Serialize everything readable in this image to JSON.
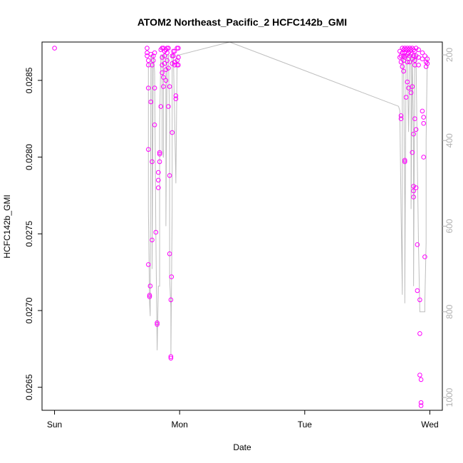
{
  "chart_data": {
    "type": "scatter",
    "title": "ATOM2 Northeast_Pacific_2 HCFC142b_GMI",
    "xlabel": "Date",
    "ylabel": "HCFC142b_GMI",
    "x_unit": "days",
    "x_ticks": [
      {
        "label": "Sun",
        "value": 0
      },
      {
        "label": "Mon",
        "value": 1
      },
      {
        "label": "Tue",
        "value": 2
      },
      {
        "label": "Wed",
        "value": 3
      }
    ],
    "xlim": [
      -0.1,
      3.1
    ],
    "ylim": [
      0.02635,
      0.02875
    ],
    "y_ticks": [
      0.0265,
      0.027,
      0.0275,
      0.028,
      0.0285
    ],
    "y_tick_labels": [
      "0.0265",
      "0.0270",
      "0.0275",
      "0.0280",
      "0.0285"
    ],
    "y2_ticks": [
      200,
      400,
      600,
      800,
      1000
    ],
    "y2_lim": [
      1030,
      170
    ],
    "grid": false,
    "point_color": "#ff00ff",
    "line_color": "#bebebe",
    "series": [
      {
        "type": "scatter",
        "points": [
          [
            0.0,
            0.02871
          ],
          [
            0.74,
            0.02871
          ],
          [
            0.74,
            0.02868
          ],
          [
            0.74,
            0.02866
          ],
          [
            0.75,
            0.02863
          ],
          [
            0.75,
            0.0286
          ],
          [
            0.75,
            0.02845
          ],
          [
            0.75,
            0.02805
          ],
          [
            0.75,
            0.0273
          ],
          [
            0.76,
            0.0271
          ],
          [
            0.76,
            0.02709
          ],
          [
            0.765,
            0.02716
          ],
          [
            0.77,
            0.02867
          ],
          [
            0.77,
            0.02836
          ],
          [
            0.78,
            0.02797
          ],
          [
            0.78,
            0.02746
          ],
          [
            0.78,
            0.0286
          ],
          [
            0.79,
            0.02866
          ],
          [
            0.79,
            0.02863
          ],
          [
            0.8,
            0.02868
          ],
          [
            0.8,
            0.02845
          ],
          [
            0.8,
            0.02821
          ],
          [
            0.81,
            0.02751
          ],
          [
            0.82,
            0.02692
          ],
          [
            0.82,
            0.02691
          ],
          [
            0.83,
            0.0279
          ],
          [
            0.83,
            0.02785
          ],
          [
            0.83,
            0.0278
          ],
          [
            0.84,
            0.02802
          ],
          [
            0.84,
            0.02803
          ],
          [
            0.84,
            0.02797
          ],
          [
            0.85,
            0.02833
          ],
          [
            0.85,
            0.0287
          ],
          [
            0.86,
            0.02871
          ],
          [
            0.86,
            0.02865
          ],
          [
            0.86,
            0.0286
          ],
          [
            0.86,
            0.02855
          ],
          [
            0.87,
            0.02852
          ],
          [
            0.87,
            0.02846
          ],
          [
            0.87,
            0.02871
          ],
          [
            0.88,
            0.02869
          ],
          [
            0.88,
            0.02866
          ],
          [
            0.88,
            0.02861
          ],
          [
            0.89,
            0.0285
          ],
          [
            0.89,
            0.0287
          ],
          [
            0.89,
            0.02857
          ],
          [
            0.9,
            0.02871
          ],
          [
            0.9,
            0.02868
          ],
          [
            0.9,
            0.02863
          ],
          [
            0.91,
            0.02871
          ],
          [
            0.91,
            0.02858
          ],
          [
            0.91,
            0.02833
          ],
          [
            0.92,
            0.02846
          ],
          [
            0.92,
            0.02788
          ],
          [
            0.92,
            0.02737
          ],
          [
            0.93,
            0.02707
          ],
          [
            0.93,
            0.0267
          ],
          [
            0.93,
            0.02669
          ],
          [
            0.935,
            0.02722
          ],
          [
            0.94,
            0.02816
          ],
          [
            0.94,
            0.02861
          ],
          [
            0.94,
            0.02866
          ],
          [
            0.95,
            0.02869
          ],
          [
            0.95,
            0.02866
          ],
          [
            0.96,
            0.02862
          ],
          [
            0.96,
            0.0286
          ],
          [
            0.96,
            0.02869
          ],
          [
            0.97,
            0.02838
          ],
          [
            0.97,
            0.0284
          ],
          [
            0.98,
            0.02871
          ],
          [
            0.98,
            0.02863
          ],
          [
            0.98,
            0.0286
          ],
          [
            0.99,
            0.02865
          ],
          [
            0.99,
            0.02871
          ],
          [
            0.99,
            0.0286
          ],
          [
            2.76,
            0.02869
          ],
          [
            2.76,
            0.02865
          ],
          [
            2.77,
            0.02862
          ],
          [
            2.77,
            0.02866
          ],
          [
            2.77,
            0.02827
          ],
          [
            2.77,
            0.02825
          ],
          [
            2.78,
            0.02871
          ],
          [
            2.78,
            0.02868
          ],
          [
            2.78,
            0.02859
          ],
          [
            2.79,
            0.0287
          ],
          [
            2.79,
            0.02866
          ],
          [
            2.79,
            0.02863
          ],
          [
            2.79,
            0.02856
          ],
          [
            2.8,
            0.02871
          ],
          [
            2.8,
            0.02868
          ],
          [
            2.8,
            0.02865
          ],
          [
            2.8,
            0.02797
          ],
          [
            2.8,
            0.02798
          ],
          [
            2.81,
            0.0287
          ],
          [
            2.81,
            0.02866
          ],
          [
            2.81,
            0.02839
          ],
          [
            2.82,
            0.02871
          ],
          [
            2.82,
            0.02867
          ],
          [
            2.82,
            0.02862
          ],
          [
            2.82,
            0.02849
          ],
          [
            2.83,
            0.0287
          ],
          [
            2.83,
            0.02868
          ],
          [
            2.83,
            0.02845
          ],
          [
            2.84,
            0.02871
          ],
          [
            2.84,
            0.02866
          ],
          [
            2.84,
            0.02862
          ],
          [
            2.85,
            0.0287
          ],
          [
            2.85,
            0.02867
          ],
          [
            2.85,
            0.02842
          ],
          [
            2.86,
            0.02871
          ],
          [
            2.86,
            0.02864
          ],
          [
            2.86,
            0.02846
          ],
          [
            2.86,
            0.02803
          ],
          [
            2.87,
            0.0287
          ],
          [
            2.87,
            0.02866
          ],
          [
            2.87,
            0.02815
          ],
          [
            2.87,
            0.02781
          ],
          [
            2.87,
            0.02778
          ],
          [
            2.87,
            0.02774
          ],
          [
            2.88,
            0.02869
          ],
          [
            2.88,
            0.02863
          ],
          [
            2.88,
            0.0286
          ],
          [
            2.88,
            0.02825
          ],
          [
            2.89,
            0.02871
          ],
          [
            2.89,
            0.02866
          ],
          [
            2.89,
            0.02818
          ],
          [
            2.89,
            0.0278
          ],
          [
            2.9,
            0.02743
          ],
          [
            2.9,
            0.02713
          ],
          [
            2.91,
            0.0287
          ],
          [
            2.91,
            0.02865
          ],
          [
            2.91,
            0.0286
          ],
          [
            2.92,
            0.02707
          ],
          [
            2.92,
            0.02685
          ],
          [
            2.92,
            0.02658
          ],
          [
            2.93,
            0.02655
          ],
          [
            2.93,
            0.0264
          ],
          [
            2.93,
            0.02638
          ],
          [
            2.94,
            0.02868
          ],
          [
            2.94,
            0.02864
          ],
          [
            2.94,
            0.0283
          ],
          [
            2.95,
            0.02826
          ],
          [
            2.95,
            0.02822
          ],
          [
            2.95,
            0.028
          ],
          [
            2.96,
            0.02735
          ],
          [
            2.96,
            0.02866
          ],
          [
            2.97,
            0.02859
          ],
          [
            2.97,
            0.02862
          ],
          [
            2.98,
            0.02864
          ],
          [
            2.98,
            0.02861
          ]
        ]
      },
      {
        "type": "line",
        "axis": "y2",
        "points": [
          [
            0.75,
            220
          ],
          [
            0.75,
            560
          ],
          [
            0.76,
            780
          ],
          [
            0.765,
            810
          ],
          [
            0.77,
            200
          ],
          [
            0.78,
            220
          ],
          [
            0.78,
            700
          ],
          [
            0.79,
            200
          ],
          [
            0.8,
            240
          ],
          [
            0.81,
            620
          ],
          [
            0.82,
            890
          ],
          [
            0.83,
            740
          ],
          [
            0.84,
            740
          ],
          [
            0.84,
            360
          ],
          [
            0.85,
            200
          ],
          [
            0.86,
            200
          ],
          [
            0.86,
            420
          ],
          [
            0.87,
            440
          ],
          [
            0.87,
            200
          ],
          [
            0.88,
            200
          ],
          [
            0.89,
            220
          ],
          [
            0.89,
            600
          ],
          [
            0.9,
            200
          ],
          [
            0.91,
            200
          ],
          [
            0.92,
            350
          ],
          [
            0.92,
            720
          ],
          [
            0.93,
            790
          ],
          [
            0.93,
            900
          ],
          [
            0.94,
            560
          ],
          [
            0.94,
            200
          ],
          [
            0.95,
            200
          ],
          [
            0.97,
            500
          ],
          [
            0.98,
            200
          ],
          [
            0.99,
            200
          ],
          [
            1.0,
            200
          ],
          [
            1.4,
            170
          ],
          [
            2.75,
            320
          ],
          [
            2.76,
            330
          ],
          [
            2.77,
            560
          ],
          [
            2.78,
            760
          ],
          [
            2.78,
            200
          ],
          [
            2.79,
            200
          ],
          [
            2.8,
            560
          ],
          [
            2.8,
            780
          ],
          [
            2.81,
            200
          ],
          [
            2.82,
            200
          ],
          [
            2.83,
            380
          ],
          [
            2.84,
            200
          ],
          [
            2.85,
            200
          ],
          [
            2.85,
            560
          ],
          [
            2.86,
            200
          ],
          [
            2.87,
            400
          ],
          [
            2.87,
            740
          ],
          [
            2.88,
            200
          ],
          [
            2.89,
            200
          ],
          [
            2.9,
            450
          ],
          [
            2.91,
            650
          ],
          [
            2.92,
            800
          ],
          [
            2.96,
            800
          ],
          [
            2.96,
            780
          ],
          [
            2.97,
            640
          ],
          [
            2.97,
            400
          ],
          [
            2.98,
            200
          ]
        ]
      }
    ]
  }
}
